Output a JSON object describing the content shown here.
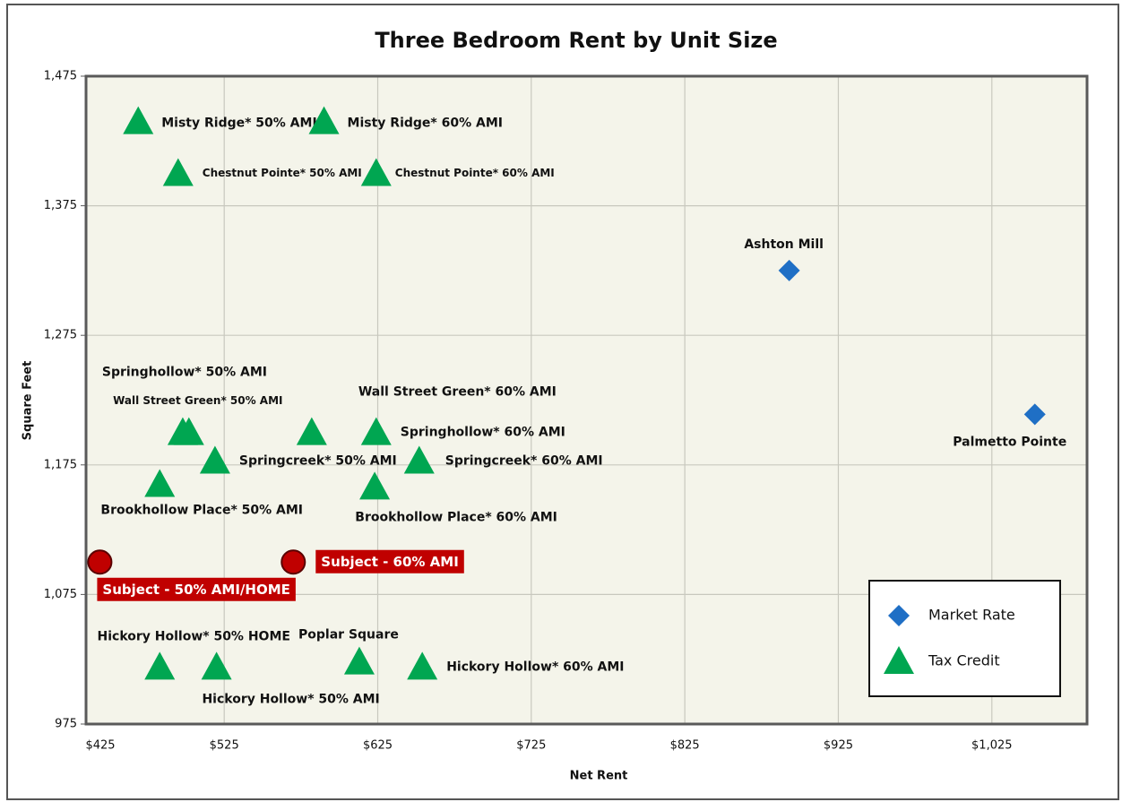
{
  "chart_data": {
    "type": "scatter",
    "title": "Three Bedroom Rent by Unit Size",
    "x_label": "Net Rent",
    "y_label": "Square Feet",
    "xlim": [
      435,
      1087
    ],
    "ylim": [
      975,
      1475
    ],
    "xticks": [
      {
        "value": 425,
        "label": "$425"
      },
      {
        "value": 525,
        "label": "$525"
      },
      {
        "value": 625,
        "label": "$625"
      },
      {
        "value": 725,
        "label": "$725"
      },
      {
        "value": 825,
        "label": "$825"
      },
      {
        "value": 925,
        "label": "$925"
      },
      {
        "value": 1025,
        "label": "$1,025"
      }
    ],
    "yticks": [
      975,
      {
        "value": 1075,
        "label": "1,075"
      },
      {
        "value": 1175,
        "label": "1,175"
      },
      {
        "value": 1275,
        "label": "1,275"
      },
      {
        "value": 1375,
        "label": "1,375"
      },
      {
        "value": 1475,
        "label": "1,475"
      }
    ],
    "grid": true,
    "legend": "lower right",
    "series": [
      {
        "name": "Market Rate",
        "color": "#1f6fc5",
        "marker": "diamond",
        "x": [
          893,
          1053
        ],
        "y": [
          1325,
          1214
        ],
        "labels": [
          "Ashton Mill",
          "Palmetto Pointe"
        ]
      },
      {
        "name": "Tax Credit",
        "color": "#00a651",
        "marker": "triangle",
        "x": [
          469,
          590,
          495,
          624,
          498,
          502,
          582,
          624,
          519,
          652,
          483,
          623,
          483,
          520,
          613,
          654
        ],
        "y": [
          1440,
          1440,
          1400,
          1400,
          1200,
          1200,
          1200,
          1200,
          1178,
          1178,
          1160,
          1158,
          1019,
          1019,
          1023,
          1019
        ],
        "labels": [
          "Misty Ridge* 50% AMI",
          "Misty Ridge* 60% AMI",
          "Chestnut Pointe* 50% AMI",
          "Chestnut Pointe* 60% AMI",
          "Springhollow* 50% AMI",
          "Wall Street Green* 50% AMI",
          "Wall Street Green* 60% AMI",
          "Springhollow* 60% AMI",
          "Springcreek* 50% AMI",
          "Springcreek* 60% AMI",
          "Brookhollow Place* 50% AMI",
          "Brookhollow Place* 60% AMI",
          "Hickory Hollow* 50% HOME",
          "Hickory Hollow* 50% AMI",
          "Poplar Square",
          "Hickory Hollow* 60% AMI"
        ]
      },
      {
        "color": "#c00000",
        "marker": "circle",
        "x": [
          444,
          570
        ],
        "y": [
          1100,
          1100
        ],
        "labels": [
          "Subject - 50% AMI/HOME",
          "Subject - 60% AMI"
        ]
      }
    ]
  }
}
